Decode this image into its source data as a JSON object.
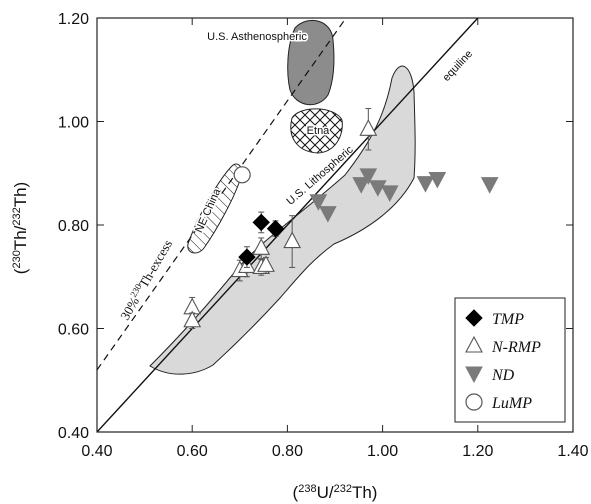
{
  "chart_data": {
    "type": "scatter",
    "x_axis": {
      "ticks": [
        0.4,
        0.6,
        0.8,
        1.0,
        1.2,
        1.4
      ],
      "tick_labels": [
        "0.40",
        "0.60",
        "0.80",
        "1.00",
        "1.20",
        "1.40"
      ],
      "range": [
        0.4,
        1.4
      ],
      "label_base": "(",
      "label_sup1": "238",
      "label_mid": "U/",
      "label_sup2": "232",
      "label_end": "Th)"
    },
    "y_axis": {
      "ticks": [
        0.4,
        0.6,
        0.8,
        1.0,
        1.2
      ],
      "tick_labels": [
        "0.40",
        "0.60",
        "0.80",
        "1.00",
        "1.20"
      ],
      "range": [
        0.4,
        1.2
      ],
      "label_base": "(",
      "label_sup1": "230",
      "label_mid": "Th/",
      "label_sup2": "232",
      "label_end": "Th)"
    },
    "reference_lines": {
      "equiline_label": "equiline",
      "excess_label_prefix": "30%",
      "excess_label_sup": "230",
      "excess_label_suffix": "Th-excess",
      "excess_factor": 1.3
    },
    "regions": [
      {
        "name": "U.S. Asthenospheric",
        "fill": "#8c8c8c"
      },
      {
        "name": "Etna",
        "fill": "#ffffff"
      },
      {
        "name": "NE China",
        "fill": "#ffffff"
      },
      {
        "name": "U.S. Lithospheric",
        "fill": "#d9d9d9"
      }
    ],
    "series": [
      {
        "name": "TMP",
        "marker": "diamond",
        "color": "#000000",
        "points": [
          [
            0.715,
            0.738
          ],
          [
            0.745,
            0.805
          ],
          [
            0.775,
            0.793
          ]
        ],
        "err": [
          0.02,
          0.02,
          0.015
        ]
      },
      {
        "name": "N-RMP",
        "marker": "triangle-up-open",
        "color": "#555555",
        "points": [
          [
            0.6,
            0.64
          ],
          [
            0.6,
            0.615
          ],
          [
            0.7,
            0.712
          ],
          [
            0.715,
            0.72
          ],
          [
            0.745,
            0.755
          ],
          [
            0.745,
            0.718
          ],
          [
            0.755,
            0.722
          ],
          [
            0.81,
            0.768
          ],
          [
            0.97,
            0.985
          ]
        ],
        "err": [
          0.02,
          0.015,
          0.02,
          0.02,
          0.02,
          0.015,
          0.015,
          0.05,
          0.04
        ]
      },
      {
        "name": "ND",
        "marker": "triangle-down",
        "color": "#7a7a7a",
        "points": [
          [
            0.865,
            0.845
          ],
          [
            0.885,
            0.822
          ],
          [
            0.955,
            0.878
          ],
          [
            0.97,
            0.895
          ],
          [
            0.99,
            0.872
          ],
          [
            1.015,
            0.862
          ],
          [
            1.09,
            0.88
          ],
          [
            1.115,
            0.888
          ],
          [
            1.225,
            0.878
          ]
        ],
        "err": []
      },
      {
        "name": "LuMP",
        "marker": "circle-open",
        "color": "#555555",
        "points": [
          [
            0.705,
            0.897
          ]
        ],
        "err": []
      }
    ]
  }
}
